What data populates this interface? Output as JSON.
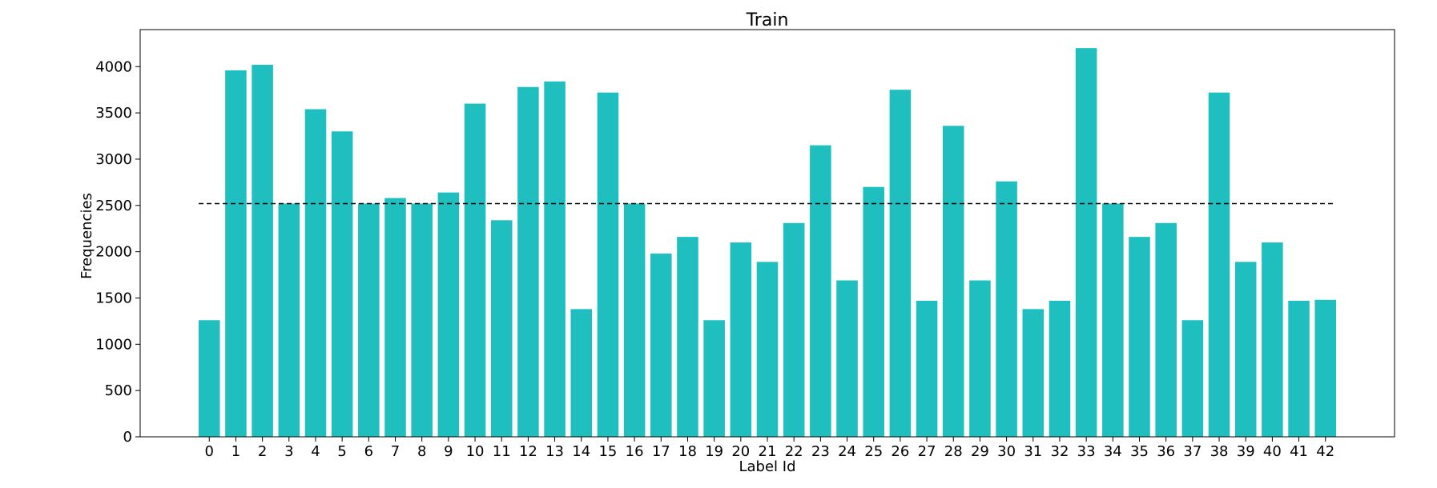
{
  "chart_data": {
    "type": "bar",
    "title": "Train",
    "xlabel": "Label Id",
    "ylabel": "Frequencies",
    "categories": [
      "0",
      "1",
      "2",
      "3",
      "4",
      "5",
      "6",
      "7",
      "8",
      "9",
      "10",
      "11",
      "12",
      "13",
      "14",
      "15",
      "16",
      "17",
      "18",
      "19",
      "20",
      "21",
      "22",
      "23",
      "24",
      "25",
      "26",
      "27",
      "28",
      "29",
      "30",
      "31",
      "32",
      "33",
      "34",
      "35",
      "36",
      "37",
      "38",
      "39",
      "40",
      "41",
      "42"
    ],
    "values": [
      1260,
      3960,
      4020,
      2520,
      3540,
      3300,
      2520,
      2580,
      2520,
      2640,
      3600,
      2340,
      3780,
      3840,
      1380,
      3720,
      2520,
      1980,
      2160,
      1260,
      2100,
      1890,
      2310,
      3150,
      1690,
      2700,
      3750,
      1470,
      3360,
      1690,
      2760,
      1380,
      1470,
      4200,
      2520,
      2160,
      2310,
      1260,
      3720,
      1890,
      2100,
      1470,
      1480
    ],
    "mean_line": 2520,
    "ylim": [
      0,
      4400
    ],
    "yticks": [
      0,
      500,
      1000,
      1500,
      2000,
      2500,
      3000,
      3500,
      4000
    ],
    "bar_color": "#1fbfbf",
    "mean_line_color": "#000000",
    "grid": false
  }
}
